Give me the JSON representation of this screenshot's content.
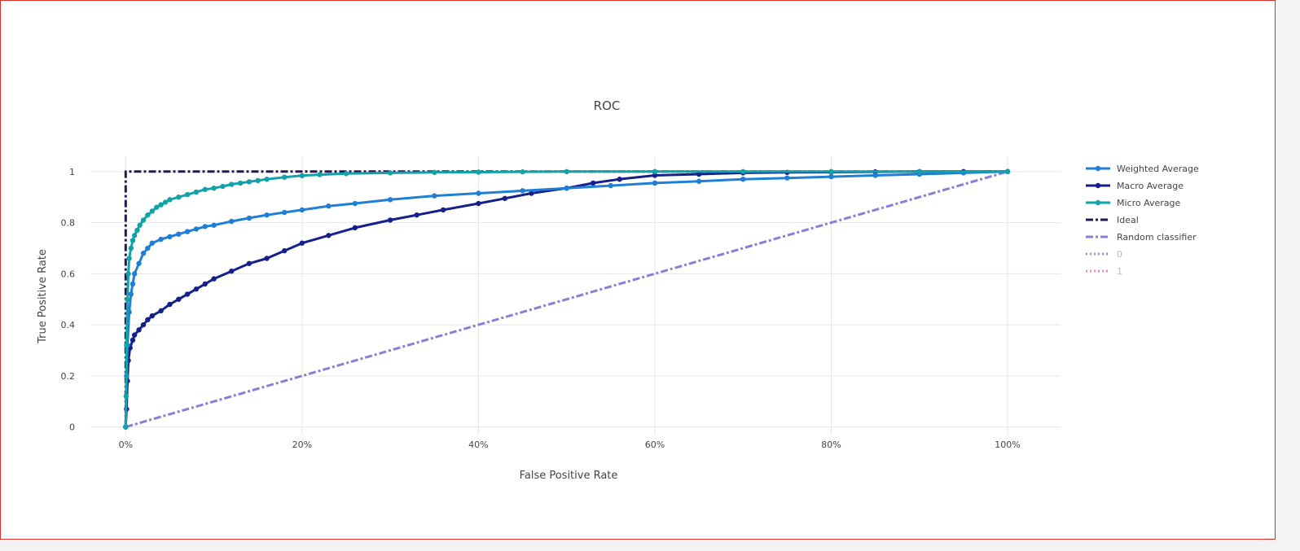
{
  "chart_data": {
    "type": "line",
    "title": "ROC",
    "xlabel": "False Positive Rate",
    "ylabel": "True Positive Rate",
    "xlim": [
      -0.04,
      1.06
    ],
    "ylim": [
      -0.03,
      1.06
    ],
    "x_ticks": [
      {
        "v": 0,
        "label": "0%"
      },
      {
        "v": 0.2,
        "label": "20%"
      },
      {
        "v": 0.4,
        "label": "40%"
      },
      {
        "v": 0.6,
        "label": "60%"
      },
      {
        "v": 0.8,
        "label": "80%"
      },
      {
        "v": 1,
        "label": "100%"
      }
    ],
    "y_ticks": [
      {
        "v": 0,
        "label": "0"
      },
      {
        "v": 0.2,
        "label": "0.2"
      },
      {
        "v": 0.4,
        "label": "0.4"
      },
      {
        "v": 0.6,
        "label": "0.6"
      },
      {
        "v": 0.8,
        "label": "0.8"
      },
      {
        "v": 1,
        "label": "1"
      }
    ],
    "grid": true,
    "legend_position": "right",
    "series": [
      {
        "name": "Weighted Average",
        "color": "#1f7fd6",
        "dash": "solid",
        "markers": true,
        "legend_style": "normal",
        "x": [
          0,
          0.001,
          0.002,
          0.004,
          0.006,
          0.008,
          0.01,
          0.015,
          0.02,
          0.025,
          0.03,
          0.04,
          0.05,
          0.06,
          0.07,
          0.08,
          0.09,
          0.1,
          0.12,
          0.14,
          0.16,
          0.18,
          0.2,
          0.23,
          0.26,
          0.3,
          0.35,
          0.4,
          0.45,
          0.5,
          0.55,
          0.6,
          0.65,
          0.7,
          0.75,
          0.8,
          0.85,
          0.9,
          0.95,
          1.0
        ],
        "y": [
          0,
          0.2,
          0.32,
          0.45,
          0.52,
          0.56,
          0.6,
          0.64,
          0.68,
          0.7,
          0.72,
          0.735,
          0.745,
          0.755,
          0.765,
          0.775,
          0.785,
          0.79,
          0.805,
          0.818,
          0.83,
          0.84,
          0.85,
          0.865,
          0.875,
          0.89,
          0.905,
          0.915,
          0.925,
          0.935,
          0.945,
          0.955,
          0.962,
          0.97,
          0.975,
          0.98,
          0.985,
          0.99,
          0.995,
          1.0
        ]
      },
      {
        "name": "Macro Average",
        "color": "#15208c",
        "dash": "solid",
        "markers": true,
        "legend_style": "normal",
        "x": [
          0,
          0.001,
          0.002,
          0.003,
          0.005,
          0.008,
          0.01,
          0.015,
          0.02,
          0.025,
          0.03,
          0.04,
          0.05,
          0.06,
          0.07,
          0.08,
          0.09,
          0.1,
          0.12,
          0.14,
          0.16,
          0.18,
          0.2,
          0.23,
          0.26,
          0.3,
          0.33,
          0.36,
          0.4,
          0.43,
          0.46,
          0.5,
          0.53,
          0.56,
          0.6,
          0.65,
          0.7,
          0.75,
          0.8,
          0.85,
          0.9,
          0.95,
          1.0
        ],
        "y": [
          0,
          0.07,
          0.18,
          0.26,
          0.31,
          0.34,
          0.36,
          0.38,
          0.4,
          0.42,
          0.435,
          0.455,
          0.48,
          0.5,
          0.52,
          0.54,
          0.56,
          0.58,
          0.61,
          0.64,
          0.66,
          0.69,
          0.72,
          0.75,
          0.78,
          0.81,
          0.83,
          0.85,
          0.875,
          0.895,
          0.915,
          0.935,
          0.955,
          0.97,
          0.985,
          0.99,
          0.995,
          0.997,
          0.998,
          0.999,
          1.0,
          1.0,
          1.0
        ]
      },
      {
        "name": "Micro Average",
        "color": "#12a3a8",
        "dash": "solid",
        "markers": true,
        "legend_style": "normal",
        "x": [
          0,
          0.0005,
          0.001,
          0.002,
          0.003,
          0.004,
          0.006,
          0.008,
          0.01,
          0.013,
          0.016,
          0.02,
          0.025,
          0.03,
          0.035,
          0.04,
          0.045,
          0.05,
          0.06,
          0.07,
          0.08,
          0.09,
          0.1,
          0.11,
          0.12,
          0.13,
          0.14,
          0.15,
          0.16,
          0.18,
          0.2,
          0.22,
          0.25,
          0.3,
          0.35,
          0.4,
          0.45,
          0.5,
          0.6,
          0.7,
          0.8,
          0.9,
          1.0
        ],
        "y": [
          0,
          0.12,
          0.32,
          0.5,
          0.6,
          0.66,
          0.7,
          0.73,
          0.75,
          0.77,
          0.79,
          0.81,
          0.83,
          0.845,
          0.86,
          0.87,
          0.88,
          0.89,
          0.9,
          0.91,
          0.92,
          0.93,
          0.935,
          0.942,
          0.95,
          0.955,
          0.96,
          0.965,
          0.97,
          0.978,
          0.984,
          0.988,
          0.992,
          0.995,
          0.997,
          0.998,
          0.999,
          1.0,
          1.0,
          1.0,
          1.0,
          1.0,
          1.0
        ]
      },
      {
        "name": "Ideal",
        "color": "#2a1657",
        "dash": "dashdot",
        "markers": false,
        "legend_style": "normal",
        "x": [
          0,
          0,
          1
        ],
        "y": [
          0,
          1,
          1
        ]
      },
      {
        "name": "Random classifier",
        "color": "#8a7fd6",
        "dash": "dashdot",
        "markers": false,
        "legend_style": "normal",
        "x": [
          0,
          1
        ],
        "y": [
          0,
          1
        ]
      },
      {
        "name": "0",
        "color": "#b08ac0",
        "dash": "dot",
        "markers": false,
        "legend_style": "hidden",
        "x": [],
        "y": []
      },
      {
        "name": "1",
        "color": "#e98ac6",
        "dash": "dot",
        "markers": false,
        "legend_style": "hidden",
        "x": [],
        "y": []
      }
    ]
  }
}
